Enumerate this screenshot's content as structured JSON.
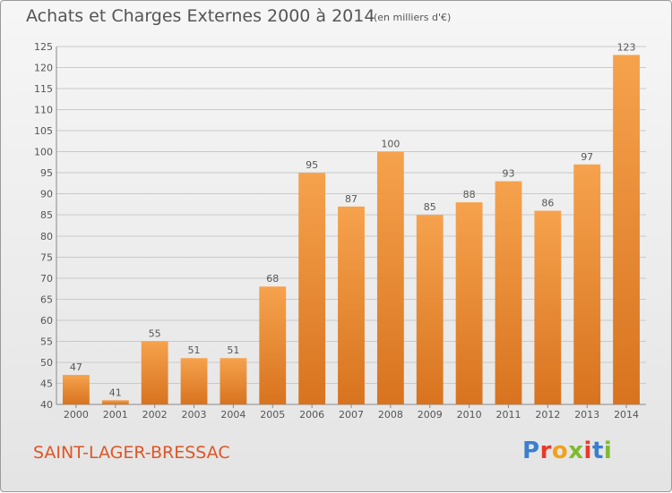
{
  "header": {
    "title": "Achats et Charges Externes 2000 à 2014",
    "subtitle": "(en milliers d'€)"
  },
  "footer": {
    "town": "SAINT-LAGER-BRESSAC",
    "logo_text": "Proxiti",
    "logo_colors": [
      "#3a7fd0",
      "#e8392a",
      "#f3a01b",
      "#7dbb2e",
      "#e8392a",
      "#3a7fd0",
      "#7dbb2e"
    ]
  },
  "colors": {
    "bar_top": "#f6a24d",
    "bar_bottom": "#d8731f",
    "grid": "#c9c9c9",
    "text": "#555555",
    "town": "#e05524"
  },
  "chart_data": {
    "type": "bar",
    "categories": [
      "2000",
      "2001",
      "2002",
      "2003",
      "2004",
      "2005",
      "2006",
      "2007",
      "2008",
      "2009",
      "2010",
      "2011",
      "2012",
      "2013",
      "2014"
    ],
    "values": [
      47,
      41,
      55,
      51,
      51,
      68,
      95,
      87,
      100,
      85,
      88,
      93,
      86,
      97,
      123
    ],
    "title": "Achats et Charges Externes 2000 à 2014",
    "subtitle": "(en milliers d'€)",
    "ylim": [
      40,
      125
    ],
    "yticks": [
      40,
      45,
      50,
      55,
      60,
      65,
      70,
      75,
      80,
      85,
      90,
      95,
      100,
      105,
      110,
      115,
      120,
      125
    ],
    "grid": true,
    "legend": "none"
  }
}
